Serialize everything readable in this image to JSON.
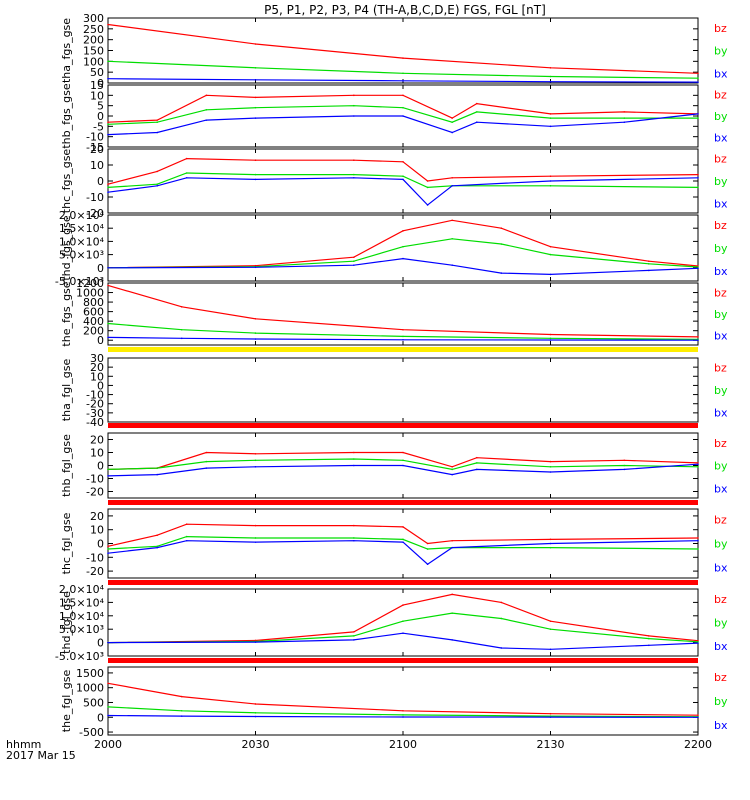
{
  "title": "P5, P1, P2, P3, P4 (TH-A,B,C,D,E) FGS, FGL [nT]",
  "time_axis": {
    "ticks": [
      "2000",
      "2030",
      "2100",
      "2130",
      "2200"
    ],
    "row_label": "hhmm",
    "date_label": "2017 Mar 15"
  },
  "colors": {
    "bz": "#ff0000",
    "by": "#00dd00",
    "bx": "#0000ff"
  },
  "chart_data": [
    {
      "type": "line",
      "panel_id": "tha-fgs",
      "ylabel": "tha_fgs_gse",
      "ylim": [
        0,
        300
      ],
      "yticks": [
        {
          "v": 300,
          "t": "300"
        },
        {
          "v": 250,
          "t": "250"
        },
        {
          "v": 200,
          "t": "200"
        },
        {
          "v": 150,
          "t": "150"
        },
        {
          "v": 100,
          "t": "100"
        },
        {
          "v": 50,
          "t": "50"
        },
        {
          "v": 0,
          "t": "0"
        }
      ],
      "x": [
        "2000",
        "2030",
        "2100",
        "2130",
        "2200"
      ],
      "series": [
        {
          "name": "bz",
          "color": "#ff0000",
          "values": [
            270,
            180,
            115,
            70,
            45
          ]
        },
        {
          "name": "by",
          "color": "#00dd00",
          "values": [
            100,
            70,
            45,
            30,
            22
          ]
        },
        {
          "name": "bx",
          "color": "#0000ff",
          "values": [
            20,
            15,
            10,
            6,
            4
          ]
        }
      ],
      "legend": [
        "bz",
        "by",
        "bx"
      ]
    },
    {
      "type": "line",
      "panel_id": "thb-fgs",
      "ylabel": "thb_fgs_gse",
      "ylim": [
        -15,
        15
      ],
      "yticks": [
        {
          "v": 15,
          "t": "15"
        },
        {
          "v": 10,
          "t": "10"
        },
        {
          "v": 5,
          "t": "5"
        },
        {
          "v": 0,
          "t": "0"
        },
        {
          "v": -5,
          "t": "-5"
        },
        {
          "v": -10,
          "t": "-10"
        },
        {
          "v": -15,
          "t": "-15"
        }
      ],
      "x": [
        "2000",
        "2010",
        "2020",
        "2030",
        "2050",
        "2100",
        "2110",
        "2115",
        "2130",
        "2145",
        "2200"
      ],
      "series": [
        {
          "name": "bz",
          "color": "#ff0000",
          "values": [
            -3,
            -2,
            10,
            9,
            10,
            10,
            -1,
            6,
            1,
            2,
            1
          ]
        },
        {
          "name": "by",
          "color": "#00dd00",
          "values": [
            -4,
            -3,
            3,
            4,
            5,
            4,
            -3,
            2,
            -1,
            -1,
            -1
          ]
        },
        {
          "name": "bx",
          "color": "#0000ff",
          "values": [
            -9,
            -8,
            -2,
            -1,
            0,
            0,
            -8,
            -3,
            -5,
            -3,
            1
          ]
        }
      ],
      "legend": [
        "bz",
        "by",
        "bx"
      ]
    },
    {
      "type": "line",
      "panel_id": "thc-fgs",
      "ylabel": "thc_fgs_gse",
      "ylim": [
        -20,
        20
      ],
      "yticks": [
        {
          "v": 20,
          "t": "20"
        },
        {
          "v": 10,
          "t": "10"
        },
        {
          "v": 0,
          "t": "0"
        },
        {
          "v": -10,
          "t": "-10"
        },
        {
          "v": -20,
          "t": "-20"
        }
      ],
      "x": [
        "2000",
        "2010",
        "2016",
        "2030",
        "2050",
        "2100",
        "2105",
        "2110",
        "2130",
        "2200"
      ],
      "series": [
        {
          "name": "bz",
          "color": "#ff0000",
          "values": [
            -2,
            6,
            14,
            13,
            13,
            12,
            0,
            2,
            3,
            4
          ]
        },
        {
          "name": "by",
          "color": "#00dd00",
          "values": [
            -4,
            -2,
            5,
            4,
            4,
            3,
            -4,
            -3,
            -3,
            -4
          ]
        },
        {
          "name": "bx",
          "color": "#0000ff",
          "values": [
            -7,
            -3,
            2,
            1,
            2,
            1,
            -15,
            -3,
            0,
            2
          ]
        }
      ],
      "legend": [
        "bz",
        "by",
        "bx"
      ]
    },
    {
      "type": "line",
      "panel_id": "thd-fgs",
      "ylabel": "thd_fgs_gse",
      "ylim": [
        -5000,
        20000
      ],
      "yticks": [
        {
          "v": 20000,
          "t": "2.0×10⁴"
        },
        {
          "v": 15000,
          "t": "1.5×10⁴"
        },
        {
          "v": 10000,
          "t": "1.0×10⁴"
        },
        {
          "v": 5000,
          "t": "5.0×10³"
        },
        {
          "v": 0,
          "t": "0"
        },
        {
          "v": -5000,
          "t": "-5.0×10³"
        }
      ],
      "x": [
        "2000",
        "2030",
        "2050",
        "2100",
        "2110",
        "2120",
        "2130",
        "2150",
        "2200"
      ],
      "series": [
        {
          "name": "bz",
          "color": "#ff0000",
          "values": [
            0,
            800,
            4000,
            14000,
            18000,
            15000,
            8000,
            2500,
            700
          ]
        },
        {
          "name": "by",
          "color": "#00dd00",
          "values": [
            0,
            400,
            2500,
            8000,
            11000,
            9000,
            5000,
            1500,
            300
          ]
        },
        {
          "name": "bx",
          "color": "#0000ff",
          "values": [
            0,
            200,
            1000,
            3500,
            1000,
            -2000,
            -2500,
            -1000,
            -200
          ]
        }
      ],
      "legend": [
        "bz",
        "by",
        "bx"
      ]
    },
    {
      "type": "line",
      "panel_id": "the-fgs",
      "ylabel": "the_fgs_gse",
      "ylim": [
        -100,
        1200
      ],
      "yticks": [
        {
          "v": 1200,
          "t": "1200"
        },
        {
          "v": 1000,
          "t": "1000"
        },
        {
          "v": 800,
          "t": "800"
        },
        {
          "v": 600,
          "t": "600"
        },
        {
          "v": 400,
          "t": "400"
        },
        {
          "v": 200,
          "t": "200"
        },
        {
          "v": 0,
          "t": "0"
        }
      ],
      "x": [
        "2000",
        "2015",
        "2030",
        "2100",
        "2130",
        "2200"
      ],
      "series": [
        {
          "name": "bz",
          "color": "#ff0000",
          "values": [
            1150,
            700,
            450,
            220,
            120,
            70
          ]
        },
        {
          "name": "by",
          "color": "#00dd00",
          "values": [
            350,
            220,
            150,
            80,
            40,
            20
          ]
        },
        {
          "name": "bx",
          "color": "#0000ff",
          "values": [
            60,
            40,
            25,
            10,
            5,
            0
          ]
        }
      ],
      "legend": [
        "bz",
        "by",
        "bx"
      ]
    },
    {
      "type": "line",
      "panel_id": "tha-fgl",
      "ylabel": "tha_fgl_gse",
      "ylim": [
        -40,
        30
      ],
      "yticks": [
        {
          "v": 30,
          "t": "30"
        },
        {
          "v": 20,
          "t": "20"
        },
        {
          "v": 10,
          "t": "10"
        },
        {
          "v": 0,
          "t": "0"
        },
        {
          "v": -10,
          "t": "-10"
        },
        {
          "v": -20,
          "t": "-20"
        },
        {
          "v": -30,
          "t": "-30"
        },
        {
          "v": -40,
          "t": "-40"
        }
      ],
      "x": [],
      "series": [],
      "legend": [
        "bz",
        "by",
        "bx"
      ]
    },
    {
      "type": "line",
      "panel_id": "thb-fgl",
      "ylabel": "thb_fgl_gse",
      "ylim": [
        -25,
        25
      ],
      "yticks": [
        {
          "v": 20,
          "t": "20"
        },
        {
          "v": 10,
          "t": "10"
        },
        {
          "v": 0,
          "t": "0"
        },
        {
          "v": -10,
          "t": "-10"
        },
        {
          "v": -20,
          "t": "-20"
        }
      ],
      "x": [
        "2000",
        "2010",
        "2020",
        "2030",
        "2050",
        "2100",
        "2110",
        "2115",
        "2130",
        "2145",
        "2200"
      ],
      "series": [
        {
          "name": "bz",
          "color": "#ff0000",
          "values": [
            -3,
            -2,
            10,
            9,
            10,
            10,
            -1,
            6,
            3,
            4,
            2
          ]
        },
        {
          "name": "by",
          "color": "#00dd00",
          "values": [
            -3,
            -2,
            3,
            4,
            5,
            4,
            -3,
            2,
            -1,
            0,
            -1
          ]
        },
        {
          "name": "bx",
          "color": "#0000ff",
          "values": [
            -8,
            -7,
            -2,
            -1,
            0,
            0,
            -7,
            -3,
            -5,
            -3,
            1
          ]
        }
      ],
      "legend": [
        "bz",
        "by",
        "bx"
      ]
    },
    {
      "type": "line",
      "panel_id": "thc-fgl",
      "ylabel": "thc_fgl_gse",
      "ylim": [
        -25,
        25
      ],
      "yticks": [
        {
          "v": 20,
          "t": "20"
        },
        {
          "v": 10,
          "t": "10"
        },
        {
          "v": 0,
          "t": "0"
        },
        {
          "v": -10,
          "t": "-10"
        },
        {
          "v": -20,
          "t": "-20"
        }
      ],
      "x": [
        "2000",
        "2010",
        "2016",
        "2030",
        "2050",
        "2100",
        "2105",
        "2110",
        "2130",
        "2200"
      ],
      "series": [
        {
          "name": "bz",
          "color": "#ff0000",
          "values": [
            -2,
            6,
            14,
            13,
            13,
            12,
            0,
            2,
            3,
            4
          ]
        },
        {
          "name": "by",
          "color": "#00dd00",
          "values": [
            -4,
            -2,
            5,
            4,
            4,
            3,
            -4,
            -3,
            -3,
            -4
          ]
        },
        {
          "name": "bx",
          "color": "#0000ff",
          "values": [
            -7,
            -3,
            2,
            1,
            2,
            1,
            -15,
            -3,
            0,
            2
          ]
        }
      ],
      "legend": [
        "bz",
        "by",
        "bx"
      ]
    },
    {
      "type": "line",
      "panel_id": "thd-fgl",
      "ylabel": "thd_fgl_gse",
      "ylim": [
        -5000,
        20000
      ],
      "yticks": [
        {
          "v": 20000,
          "t": "2.0×10⁴"
        },
        {
          "v": 15000,
          "t": "1.5×10⁴"
        },
        {
          "v": 10000,
          "t": "1.0×10⁴"
        },
        {
          "v": 5000,
          "t": "5.0×10³"
        },
        {
          "v": 0,
          "t": "0"
        },
        {
          "v": -5000,
          "t": "-5.0×10³"
        }
      ],
      "x": [
        "2000",
        "2030",
        "2050",
        "2100",
        "2110",
        "2120",
        "2130",
        "2150",
        "2200"
      ],
      "series": [
        {
          "name": "bz",
          "color": "#ff0000",
          "values": [
            0,
            800,
            4000,
            14000,
            18000,
            15000,
            8000,
            2500,
            700
          ]
        },
        {
          "name": "by",
          "color": "#00dd00",
          "values": [
            0,
            400,
            2500,
            8000,
            11000,
            9000,
            5000,
            1500,
            300
          ]
        },
        {
          "name": "bx",
          "color": "#0000ff",
          "values": [
            0,
            200,
            1000,
            3500,
            1000,
            -2000,
            -2500,
            -1000,
            -200
          ]
        }
      ],
      "legend": [
        "bz",
        "by",
        "bx"
      ]
    },
    {
      "type": "line",
      "panel_id": "the-fgl",
      "ylabel": "the_fgl_gse",
      "ylim": [
        -600,
        1700
      ],
      "yticks": [
        {
          "v": 1500,
          "t": "1500"
        },
        {
          "v": 1000,
          "t": "1000"
        },
        {
          "v": 500,
          "t": "500"
        },
        {
          "v": 0,
          "t": "0"
        },
        {
          "v": -500,
          "t": "-500"
        }
      ],
      "x": [
        "2000",
        "2015",
        "2030",
        "2100",
        "2130",
        "2200"
      ],
      "series": [
        {
          "name": "bz",
          "color": "#ff0000",
          "values": [
            1150,
            700,
            450,
            220,
            120,
            70
          ]
        },
        {
          "name": "by",
          "color": "#00dd00",
          "values": [
            350,
            220,
            150,
            80,
            40,
            20
          ]
        },
        {
          "name": "bx",
          "color": "#0000ff",
          "values": [
            60,
            40,
            25,
            10,
            5,
            0
          ]
        }
      ],
      "legend": [
        "bz",
        "by",
        "bx"
      ]
    }
  ]
}
